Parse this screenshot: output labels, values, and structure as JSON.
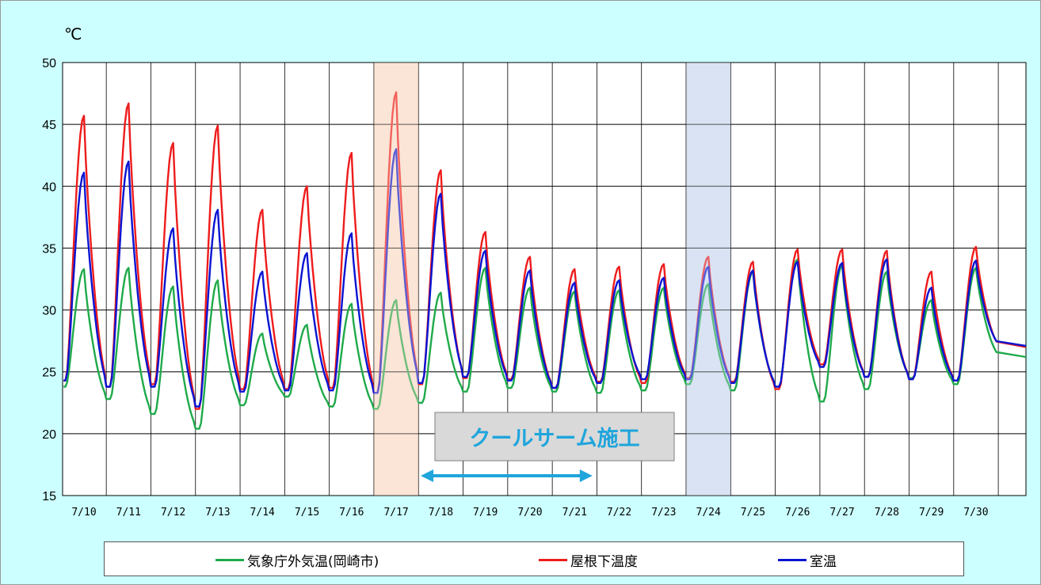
{
  "chart_data": {
    "type": "line",
    "unit_label": "℃",
    "ylim": [
      15,
      50
    ],
    "y_ticks": [
      "50",
      "45",
      "40",
      "35",
      "30",
      "25",
      "20",
      "15"
    ],
    "x_ticks": [
      "7/10",
      "7/11",
      "7/12",
      "7/13",
      "7/14",
      "7/15",
      "7/16",
      "7/17",
      "7/18",
      "7/19",
      "7/20",
      "7/21",
      "7/22",
      "7/23",
      "7/24",
      "7/25",
      "7/26",
      "7/27",
      "7/28",
      "7/29",
      "7/30"
    ],
    "grid": true,
    "shaded_days": [
      {
        "day": "7/17",
        "color": "#fbe5d6"
      },
      {
        "day": "7/24",
        "color": "#dae3f3"
      }
    ],
    "annotation": {
      "text": "クールサーム施工",
      "arrow_from_day": "7/17",
      "arrow_to_day": "7/21",
      "arrow_color": "#1fa5dc"
    },
    "series": [
      {
        "name": "気象庁外気温(岡崎市)",
        "color": "#1faa4a",
        "daily_min": [
          23.8,
          22.8,
          21.6,
          20.4,
          22.3,
          23.0,
          22.2,
          22.0,
          22.5,
          23.4,
          23.7,
          23.4,
          23.3,
          23.5,
          24.0,
          23.5,
          23.8,
          22.6,
          23.6,
          24.5,
          24.0
        ],
        "daily_max": [
          33.3,
          33.4,
          31.9,
          32.4,
          28.1,
          28.8,
          30.5,
          30.8,
          31.4,
          33.4,
          31.8,
          31.5,
          31.6,
          31.8,
          32.1,
          33.1,
          34.1,
          33.6,
          33.1,
          30.8,
          33.4
        ],
        "end": 26.2
      },
      {
        "name": "屋根下温度",
        "color": "#ee1c1c",
        "daily_min": [
          24.3,
          23.8,
          24.0,
          22.0,
          23.6,
          23.6,
          23.7,
          23.3,
          24.0,
          24.5,
          24.4,
          23.7,
          24.2,
          24.1,
          24.5,
          24.2,
          23.6,
          25.6,
          24.6,
          24.4,
          24.3
        ],
        "daily_max": [
          45.7,
          46.7,
          43.5,
          44.9,
          38.1,
          40.0,
          42.7,
          47.6,
          41.3,
          36.3,
          34.3,
          33.3,
          33.5,
          33.7,
          34.3,
          33.9,
          34.9,
          34.9,
          34.8,
          33.1,
          35.1
        ],
        "end": 27.0
      },
      {
        "name": "室温",
        "color": "#0a14d2",
        "daily_min": [
          24.3,
          23.8,
          23.8,
          22.2,
          23.4,
          23.5,
          23.5,
          23.3,
          24.1,
          24.6,
          24.3,
          23.7,
          24.1,
          24.4,
          24.4,
          24.1,
          23.8,
          25.4,
          24.6,
          24.4,
          24.3
        ],
        "daily_max": [
          41.1,
          42.0,
          36.6,
          38.1,
          33.1,
          34.6,
          36.2,
          43.0,
          39.4,
          34.8,
          33.2,
          32.2,
          32.4,
          32.6,
          33.5,
          33.2,
          33.9,
          33.8,
          34.1,
          31.8,
          34.0
        ],
        "end": 27.1
      }
    ]
  }
}
